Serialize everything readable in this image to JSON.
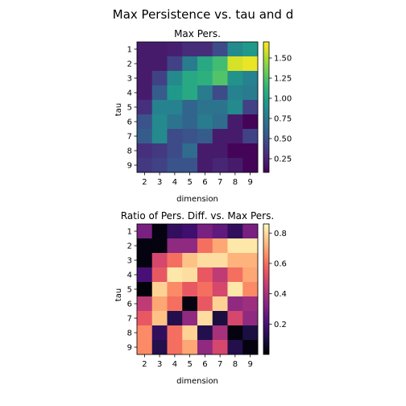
{
  "suptitle": "Max Persistence vs. tau and d",
  "chart_data": [
    {
      "type": "heatmap",
      "title": "Max Pers.",
      "xlabel": "dimension",
      "ylabel": "tau",
      "x_categories": [
        "2",
        "3",
        "4",
        "5",
        "6",
        "7",
        "8",
        "9"
      ],
      "y_categories": [
        "1",
        "2",
        "3",
        "4",
        "5",
        "6",
        "7",
        "8",
        "9"
      ],
      "colormap": "viridis",
      "vmin": 0.08,
      "vmax": 1.7,
      "colorbar_ticks": [
        0.25,
        0.5,
        0.75,
        1.0,
        1.25,
        1.5
      ],
      "colorbar_tick_labels": [
        "0.25",
        "0.50",
        "0.75",
        "1.00",
        "1.25",
        "1.50"
      ],
      "values": [
        [
          0.2,
          0.2,
          0.22,
          0.28,
          0.28,
          0.45,
          0.85,
          0.95
        ],
        [
          0.2,
          0.2,
          0.4,
          0.75,
          1.05,
          1.2,
          1.6,
          1.65
        ],
        [
          0.2,
          0.4,
          0.85,
          1.05,
          1.1,
          1.25,
          0.9,
          0.8
        ],
        [
          0.2,
          0.55,
          0.95,
          1.05,
          0.75,
          0.45,
          0.8,
          0.75
        ],
        [
          0.3,
          0.8,
          0.8,
          0.6,
          0.7,
          0.7,
          0.85,
          0.4
        ],
        [
          0.5,
          0.85,
          0.7,
          0.6,
          0.75,
          0.65,
          0.2,
          0.1
        ],
        [
          0.55,
          0.85,
          0.45,
          0.5,
          0.55,
          0.2,
          0.2,
          0.4
        ],
        [
          0.3,
          0.35,
          0.45,
          0.65,
          0.2,
          0.2,
          0.1,
          0.1
        ],
        [
          0.35,
          0.4,
          0.5,
          0.5,
          0.2,
          0.25,
          0.2,
          0.1
        ]
      ]
    },
    {
      "type": "heatmap",
      "title": "Ratio of Pers. Diff. vs. Max Pers.",
      "xlabel": "dimension",
      "ylabel": "tau",
      "x_categories": [
        "2",
        "3",
        "4",
        "5",
        "6",
        "7",
        "8",
        "9"
      ],
      "y_categories": [
        "1",
        "2",
        "3",
        "4",
        "5",
        "6",
        "7",
        "8",
        "9"
      ],
      "colormap": "magma",
      "vmin": 0.0,
      "vmax": 0.86,
      "colorbar_ticks": [
        0.2,
        0.4,
        0.6,
        0.8
      ],
      "colorbar_tick_labels": [
        "0.2",
        "0.4",
        "0.6",
        "0.8"
      ],
      "values": [
        [
          0.3,
          0.02,
          0.15,
          0.18,
          0.3,
          0.25,
          0.15,
          0.3
        ],
        [
          0.02,
          0.02,
          0.35,
          0.35,
          0.6,
          0.7,
          0.82,
          0.82
        ],
        [
          0.02,
          0.5,
          0.6,
          0.75,
          0.8,
          0.8,
          0.72,
          0.72
        ],
        [
          0.2,
          0.55,
          0.82,
          0.8,
          0.55,
          0.45,
          0.6,
          0.7
        ],
        [
          0.01,
          0.78,
          0.65,
          0.55,
          0.6,
          0.5,
          0.82,
          0.65
        ],
        [
          0.45,
          0.7,
          0.6,
          0.02,
          0.55,
          0.78,
          0.35,
          0.38
        ],
        [
          0.55,
          0.75,
          0.12,
          0.35,
          0.8,
          0.1,
          0.5,
          0.35
        ],
        [
          0.65,
          0.15,
          0.6,
          0.78,
          0.12,
          0.4,
          0.02,
          0.1
        ],
        [
          0.65,
          0.12,
          0.6,
          0.7,
          0.35,
          0.5,
          0.12,
          0.02
        ]
      ]
    }
  ]
}
